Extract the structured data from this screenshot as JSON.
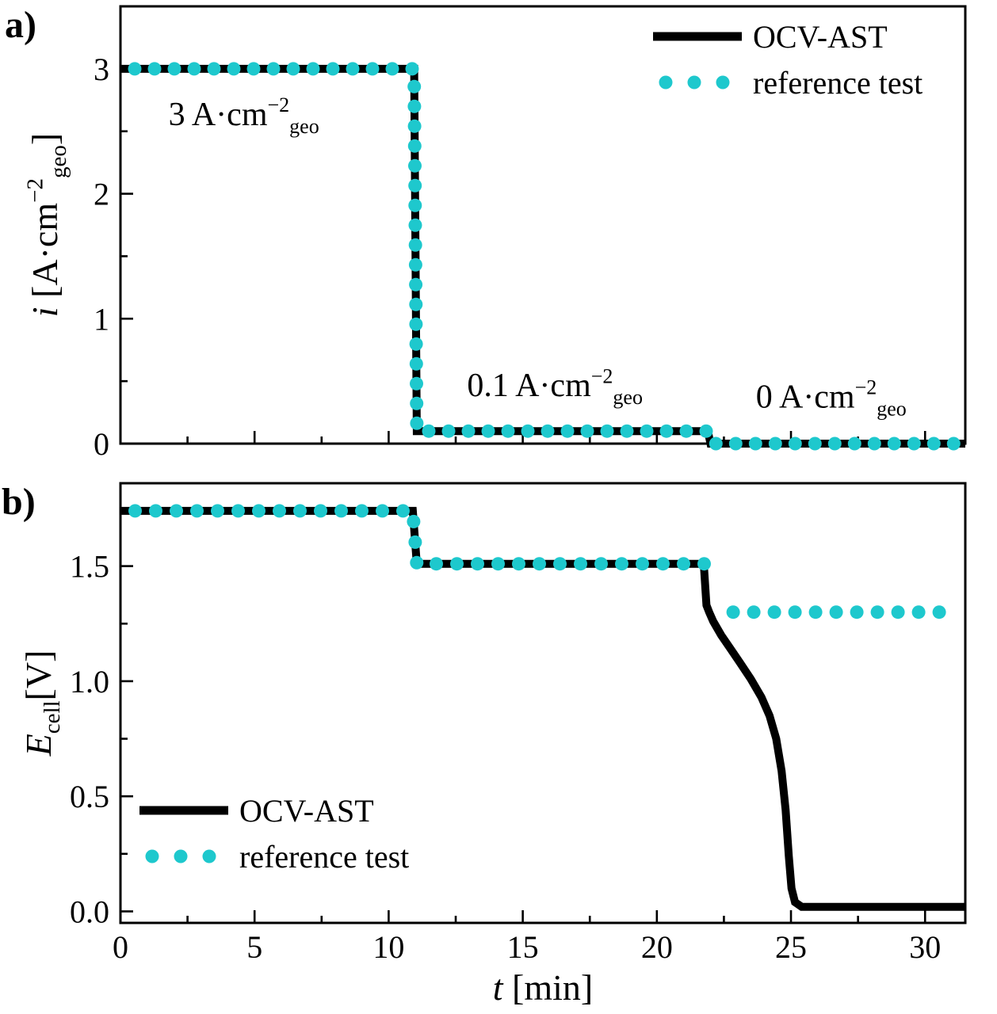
{
  "figure": {
    "background": "#ffffff",
    "colors": {
      "series_line": "#000000",
      "reference": "#1ec8cd"
    }
  },
  "chart_data": [
    {
      "id": "a",
      "type": "line",
      "panel_label": "a)",
      "ylabel_parts": [
        {
          "t": "i ",
          "style": "italic"
        },
        {
          "t": "[A·cm"
        },
        {
          "t": "−2",
          "style": "sup"
        },
        {
          "t": "geo",
          "style": "sub"
        },
        {
          "t": "]"
        }
      ],
      "xlim": [
        0,
        31.5
      ],
      "ylim": [
        0,
        3.5
      ],
      "xticks": [
        {
          "v": 0
        },
        {
          "v": 5
        },
        {
          "v": 10
        },
        {
          "v": 15
        },
        {
          "v": 20
        },
        {
          "v": 25
        },
        {
          "v": 30
        }
      ],
      "x_minor_step": 2.5,
      "show_x_labels": false,
      "yticks": [
        {
          "v": 0,
          "label": "0"
        },
        {
          "v": 1,
          "label": "1"
        },
        {
          "v": 2,
          "label": "2"
        },
        {
          "v": 3,
          "label": "3"
        }
      ],
      "y_minor_step": 0.5,
      "series": [
        {
          "name": "OCV-AST",
          "kind": "line",
          "color": "#000000",
          "width": 10,
          "points": [
            [
              0,
              3
            ],
            [
              10.95,
              3
            ],
            [
              11.05,
              0.1
            ],
            [
              21.9,
              0.1
            ],
            [
              22.0,
              0
            ],
            [
              31.5,
              0
            ]
          ]
        },
        {
          "name": "reference test",
          "kind": "dots",
          "color": "#1ec8cd",
          "radius": 8.5,
          "spacing": 25,
          "paths": [
            [
              [
                0.2,
                3
              ],
              [
                10.95,
                3
              ],
              [
                11.05,
                0.1
              ],
              [
                21.9,
                0.1
              ],
              [
                22.0,
                0
              ],
              [
                31.3,
                0
              ]
            ]
          ]
        }
      ],
      "annotations": [
        {
          "x": 4.6,
          "y": 2.55,
          "parts": [
            {
              "t": "3 A·cm"
            },
            {
              "t": "−2",
              "style": "sup"
            },
            {
              "t": "geo",
              "style": "sub"
            }
          ]
        },
        {
          "x": 16.2,
          "y": 0.38,
          "parts": [
            {
              "t": "0.1 A·cm"
            },
            {
              "t": "−2",
              "style": "sup"
            },
            {
              "t": "geo",
              "style": "sub"
            }
          ]
        },
        {
          "x": 26.5,
          "y": 0.29,
          "parts": [
            {
              "t": "0 A·cm"
            },
            {
              "t": "−2",
              "style": "sup"
            },
            {
              "t": "geo",
              "style": "sub"
            }
          ]
        }
      ],
      "legend": {
        "position": "top-right",
        "entries": [
          {
            "label": "OCV-AST",
            "kind": "line",
            "color": "#000000"
          },
          {
            "label": "reference test",
            "kind": "dots",
            "color": "#1ec8cd"
          }
        ]
      }
    },
    {
      "id": "b",
      "type": "line",
      "panel_label": "b)",
      "ylabel_parts": [
        {
          "t": "E",
          "style": "italic"
        },
        {
          "t": "cell",
          "style": "sub"
        },
        {
          "t": "[V]"
        }
      ],
      "xlabel_parts": [
        {
          "t": "t ",
          "style": "italic"
        },
        {
          "t": "[min]"
        }
      ],
      "xlim": [
        0,
        31.5
      ],
      "ylim": [
        -0.05,
        1.86
      ],
      "xticks": [
        {
          "v": 0,
          "label": "0"
        },
        {
          "v": 5,
          "label": "5"
        },
        {
          "v": 10,
          "label": "10"
        },
        {
          "v": 15,
          "label": "15"
        },
        {
          "v": 20,
          "label": "20"
        },
        {
          "v": 25,
          "label": "25"
        },
        {
          "v": 30,
          "label": "30"
        }
      ],
      "x_minor_step": 2.5,
      "show_x_labels": true,
      "yticks": [
        {
          "v": 0,
          "label": "0.0"
        },
        {
          "v": 0.5,
          "label": "0.5"
        },
        {
          "v": 1.0,
          "label": "1.0"
        },
        {
          "v": 1.5,
          "label": "1.5"
        }
      ],
      "y_minor_step": 0.25,
      "series": [
        {
          "name": "OCV-AST",
          "kind": "line",
          "color": "#000000",
          "width": 10,
          "points": [
            [
              0,
              1.74
            ],
            [
              10.9,
              1.74
            ],
            [
              11.05,
              1.51
            ],
            [
              21.75,
              1.51
            ],
            [
              21.85,
              1.33
            ],
            [
              21.95,
              1.3
            ],
            [
              22.1,
              1.26
            ],
            [
              22.4,
              1.2
            ],
            [
              22.75,
              1.14
            ],
            [
              23.1,
              1.08
            ],
            [
              23.5,
              1.01
            ],
            [
              23.9,
              0.93
            ],
            [
              24.2,
              0.85
            ],
            [
              24.45,
              0.75
            ],
            [
              24.65,
              0.61
            ],
            [
              24.8,
              0.44
            ],
            [
              24.92,
              0.24
            ],
            [
              25.02,
              0.1
            ],
            [
              25.15,
              0.04
            ],
            [
              25.4,
              0.02
            ],
            [
              31.5,
              0.02
            ]
          ]
        },
        {
          "name": "reference test",
          "kind": "dots",
          "color": "#1ec8cd",
          "radius": 8.5,
          "spacing": 26,
          "paths": [
            [
              [
                0.2,
                1.74
              ],
              [
                10.9,
                1.74
              ],
              [
                11.05,
                1.51
              ],
              [
                21.8,
                1.51
              ]
            ],
            [
              [
                22.5,
                1.3
              ],
              [
                31.0,
                1.3
              ]
            ]
          ]
        }
      ],
      "annotations": [],
      "legend": {
        "position": "bottom-left",
        "entries": [
          {
            "label": "OCV-AST",
            "kind": "line",
            "color": "#000000"
          },
          {
            "label": "reference test",
            "kind": "dots",
            "color": "#1ec8cd"
          }
        ]
      }
    }
  ]
}
